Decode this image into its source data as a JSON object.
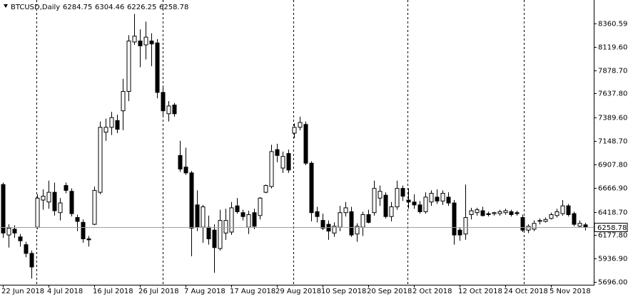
{
  "chart_data": {
    "type": "candlestick",
    "title": "BTCUSD,Daily",
    "categories": [
      "22 Jun 2018",
      null,
      null,
      null,
      null,
      null,
      null,
      null,
      "4 Jul 2018",
      null,
      null,
      null,
      null,
      null,
      null,
      null,
      "16 Jul 2018",
      null,
      null,
      null,
      null,
      null,
      null,
      null,
      "26 Jul 2018",
      null,
      null,
      null,
      null,
      null,
      null,
      null,
      "7 Aug 2018",
      null,
      null,
      null,
      null,
      null,
      null,
      null,
      "17 Aug 2018",
      null,
      null,
      null,
      null,
      null,
      null,
      null,
      "29 Aug 2018",
      null,
      null,
      null,
      null,
      null,
      null,
      null,
      "10 Sep 2018",
      null,
      null,
      null,
      null,
      null,
      null,
      null,
      "20 Sep 2018",
      null,
      null,
      null,
      null,
      null,
      null,
      null,
      "2 Oct 2018",
      null,
      null,
      null,
      null,
      null,
      null,
      null,
      "12 Oct 2018",
      null,
      null,
      null,
      null,
      null,
      null,
      null,
      "24 Oct 2018",
      null,
      null,
      null,
      null,
      null,
      null,
      null,
      "5 Nov 2018",
      null,
      null,
      null,
      null,
      null,
      null
    ],
    "open": [
      6700,
      6180,
      6240,
      6160,
      6080,
      5990,
      6260,
      6540,
      6520,
      6620,
      6410,
      6690,
      6630,
      6360,
      6310,
      6140,
      6290,
      6620,
      7240,
      7290,
      7360,
      7460,
      7660,
      8170,
      8180,
      8140,
      8180,
      8160,
      7650,
      7430,
      7520,
      7000,
      6880,
      6820,
      6490,
      6260,
      6260,
      6230,
      6040,
      6200,
      6210,
      6480,
      6410,
      6260,
      6410,
      6380,
      6620,
      6680,
      7060,
      6870,
      7020,
      7230,
      7290,
      7320,
      6920,
      6420,
      6330,
      6290,
      6200,
      6260,
      6410,
      6420,
      6190,
      6260,
      6390,
      6410,
      6560,
      6590,
      6370,
      6470,
      6660,
      6540,
      6520,
      6490,
      6420,
      6520,
      6570,
      6530,
      6570,
      6510,
      6230,
      6190,
      6390,
      6410,
      6430,
      6400,
      6400,
      6400,
      6410,
      6420,
      6410,
      6360,
      6230,
      6240,
      6320,
      6320,
      6350,
      6380,
      6400,
      6480,
      6400,
      6270,
      6284.75
    ],
    "high": [
      6720,
      6290,
      6280,
      6190,
      6110,
      6020,
      6600,
      6650,
      6740,
      6720,
      6560,
      6720,
      6660,
      6390,
      6340,
      6170,
      6680,
      7350,
      7380,
      7450,
      7420,
      7790,
      8240,
      8460,
      8300,
      8380,
      8260,
      8200,
      7720,
      7560,
      7540,
      7150,
      7080,
      6840,
      6640,
      6490,
      6380,
      6290,
      6440,
      6450,
      6520,
      6560,
      6440,
      6430,
      6450,
      6570,
      6700,
      7110,
      7120,
      7040,
      7060,
      7330,
      7400,
      7350,
      6940,
      6470,
      6400,
      6330,
      6310,
      6480,
      6520,
      6470,
      6300,
      6420,
      6440,
      6740,
      6690,
      6620,
      6520,
      6740,
      6690,
      6660,
      6600,
      6530,
      6620,
      6640,
      6650,
      6640,
      6620,
      6540,
      6260,
      6700,
      6460,
      6460,
      6470,
      6420,
      6420,
      6440,
      6450,
      6440,
      6430,
      6390,
      6290,
      6330,
      6350,
      6360,
      6410,
      6450,
      6540,
      6500,
      6420,
      6330,
      6304.46
    ],
    "low": [
      6150,
      6050,
      6150,
      6060,
      5950,
      5730,
      6240,
      6440,
      6450,
      6380,
      6330,
      6610,
      6370,
      6220,
      6100,
      6060,
      6280,
      6600,
      7150,
      7210,
      7230,
      7260,
      7560,
      8140,
      7910,
      7990,
      7920,
      7590,
      7400,
      7350,
      7400,
      6830,
      6800,
      5960,
      6220,
      6100,
      6080,
      5790,
      6020,
      6130,
      6180,
      6400,
      6330,
      6190,
      6240,
      6340,
      6610,
      6660,
      6930,
      6820,
      6820,
      7180,
      7260,
      6900,
      6320,
      6310,
      6230,
      6130,
      6160,
      6220,
      6370,
      6160,
      6110,
      6170,
      6300,
      6380,
      6480,
      6350,
      6320,
      6440,
      6530,
      6450,
      6450,
      6400,
      6400,
      6480,
      6500,
      6490,
      6480,
      6080,
      6120,
      6130,
      6340,
      6380,
      6370,
      6370,
      6380,
      6380,
      6390,
      6370,
      6380,
      6210,
      6200,
      6220,
      6290,
      6310,
      6340,
      6360,
      6380,
      6370,
      6270,
      6260,
      6226.25
    ],
    "close": [
      6200,
      6250,
      6200,
      6120,
      5990,
      5850,
      6560,
      6580,
      6620,
      6430,
      6510,
      6640,
      6400,
      6320,
      6140,
      6130,
      6640,
      7290,
      7290,
      7390,
      7270,
      7660,
      8180,
      8230,
      8130,
      8220,
      8150,
      7650,
      7460,
      7510,
      7430,
      6860,
      6820,
      6250,
      6260,
      6470,
      6140,
      6050,
      6330,
      6330,
      6460,
      6420,
      6370,
      6390,
      6270,
      6560,
      6690,
      7040,
      7000,
      6990,
      6850,
      7290,
      7340,
      6920,
      6410,
      6370,
      6250,
      6220,
      6270,
      6410,
      6460,
      6180,
      6270,
      6390,
      6310,
      6660,
      6630,
      6370,
      6470,
      6660,
      6580,
      6520,
      6490,
      6420,
      6570,
      6610,
      6530,
      6610,
      6510,
      6180,
      6180,
      6360,
      6430,
      6440,
      6380,
      6390,
      6410,
      6420,
      6430,
      6390,
      6400,
      6230,
      6270,
      6300,
      6330,
      6340,
      6390,
      6420,
      6480,
      6390,
      6290,
      6300,
      6258.78
    ],
    "ylim": [
      5666.6,
      8602.8
    ],
    "yticks": [
      8360.59,
      {
        "value": 8119.6,
        "label": "8119.60"
      },
      {
        "value": 7878.7,
        "label": "7878.70"
      },
      {
        "value": 7637.8,
        "label": "7637.80"
      },
      {
        "value": 7389.6,
        "label": "7389.60"
      },
      {
        "value": 7148.7,
        "label": "7148.70"
      },
      {
        "value": 6907.8,
        "label": "6907.80"
      },
      {
        "value": 6666.9,
        "label": "6666.90"
      },
      {
        "value": 6418.7,
        "label": "6418.70"
      },
      {
        "value": 6177.8,
        "label": "6177.80"
      },
      {
        "value": 5936.9,
        "label": "5936.90"
      },
      {
        "value": 5696,
        "label": "5696.00"
      }
    ],
    "up_color": "#ffffff",
    "down_color": "#000000",
    "line_color": "#000000"
  }
}
